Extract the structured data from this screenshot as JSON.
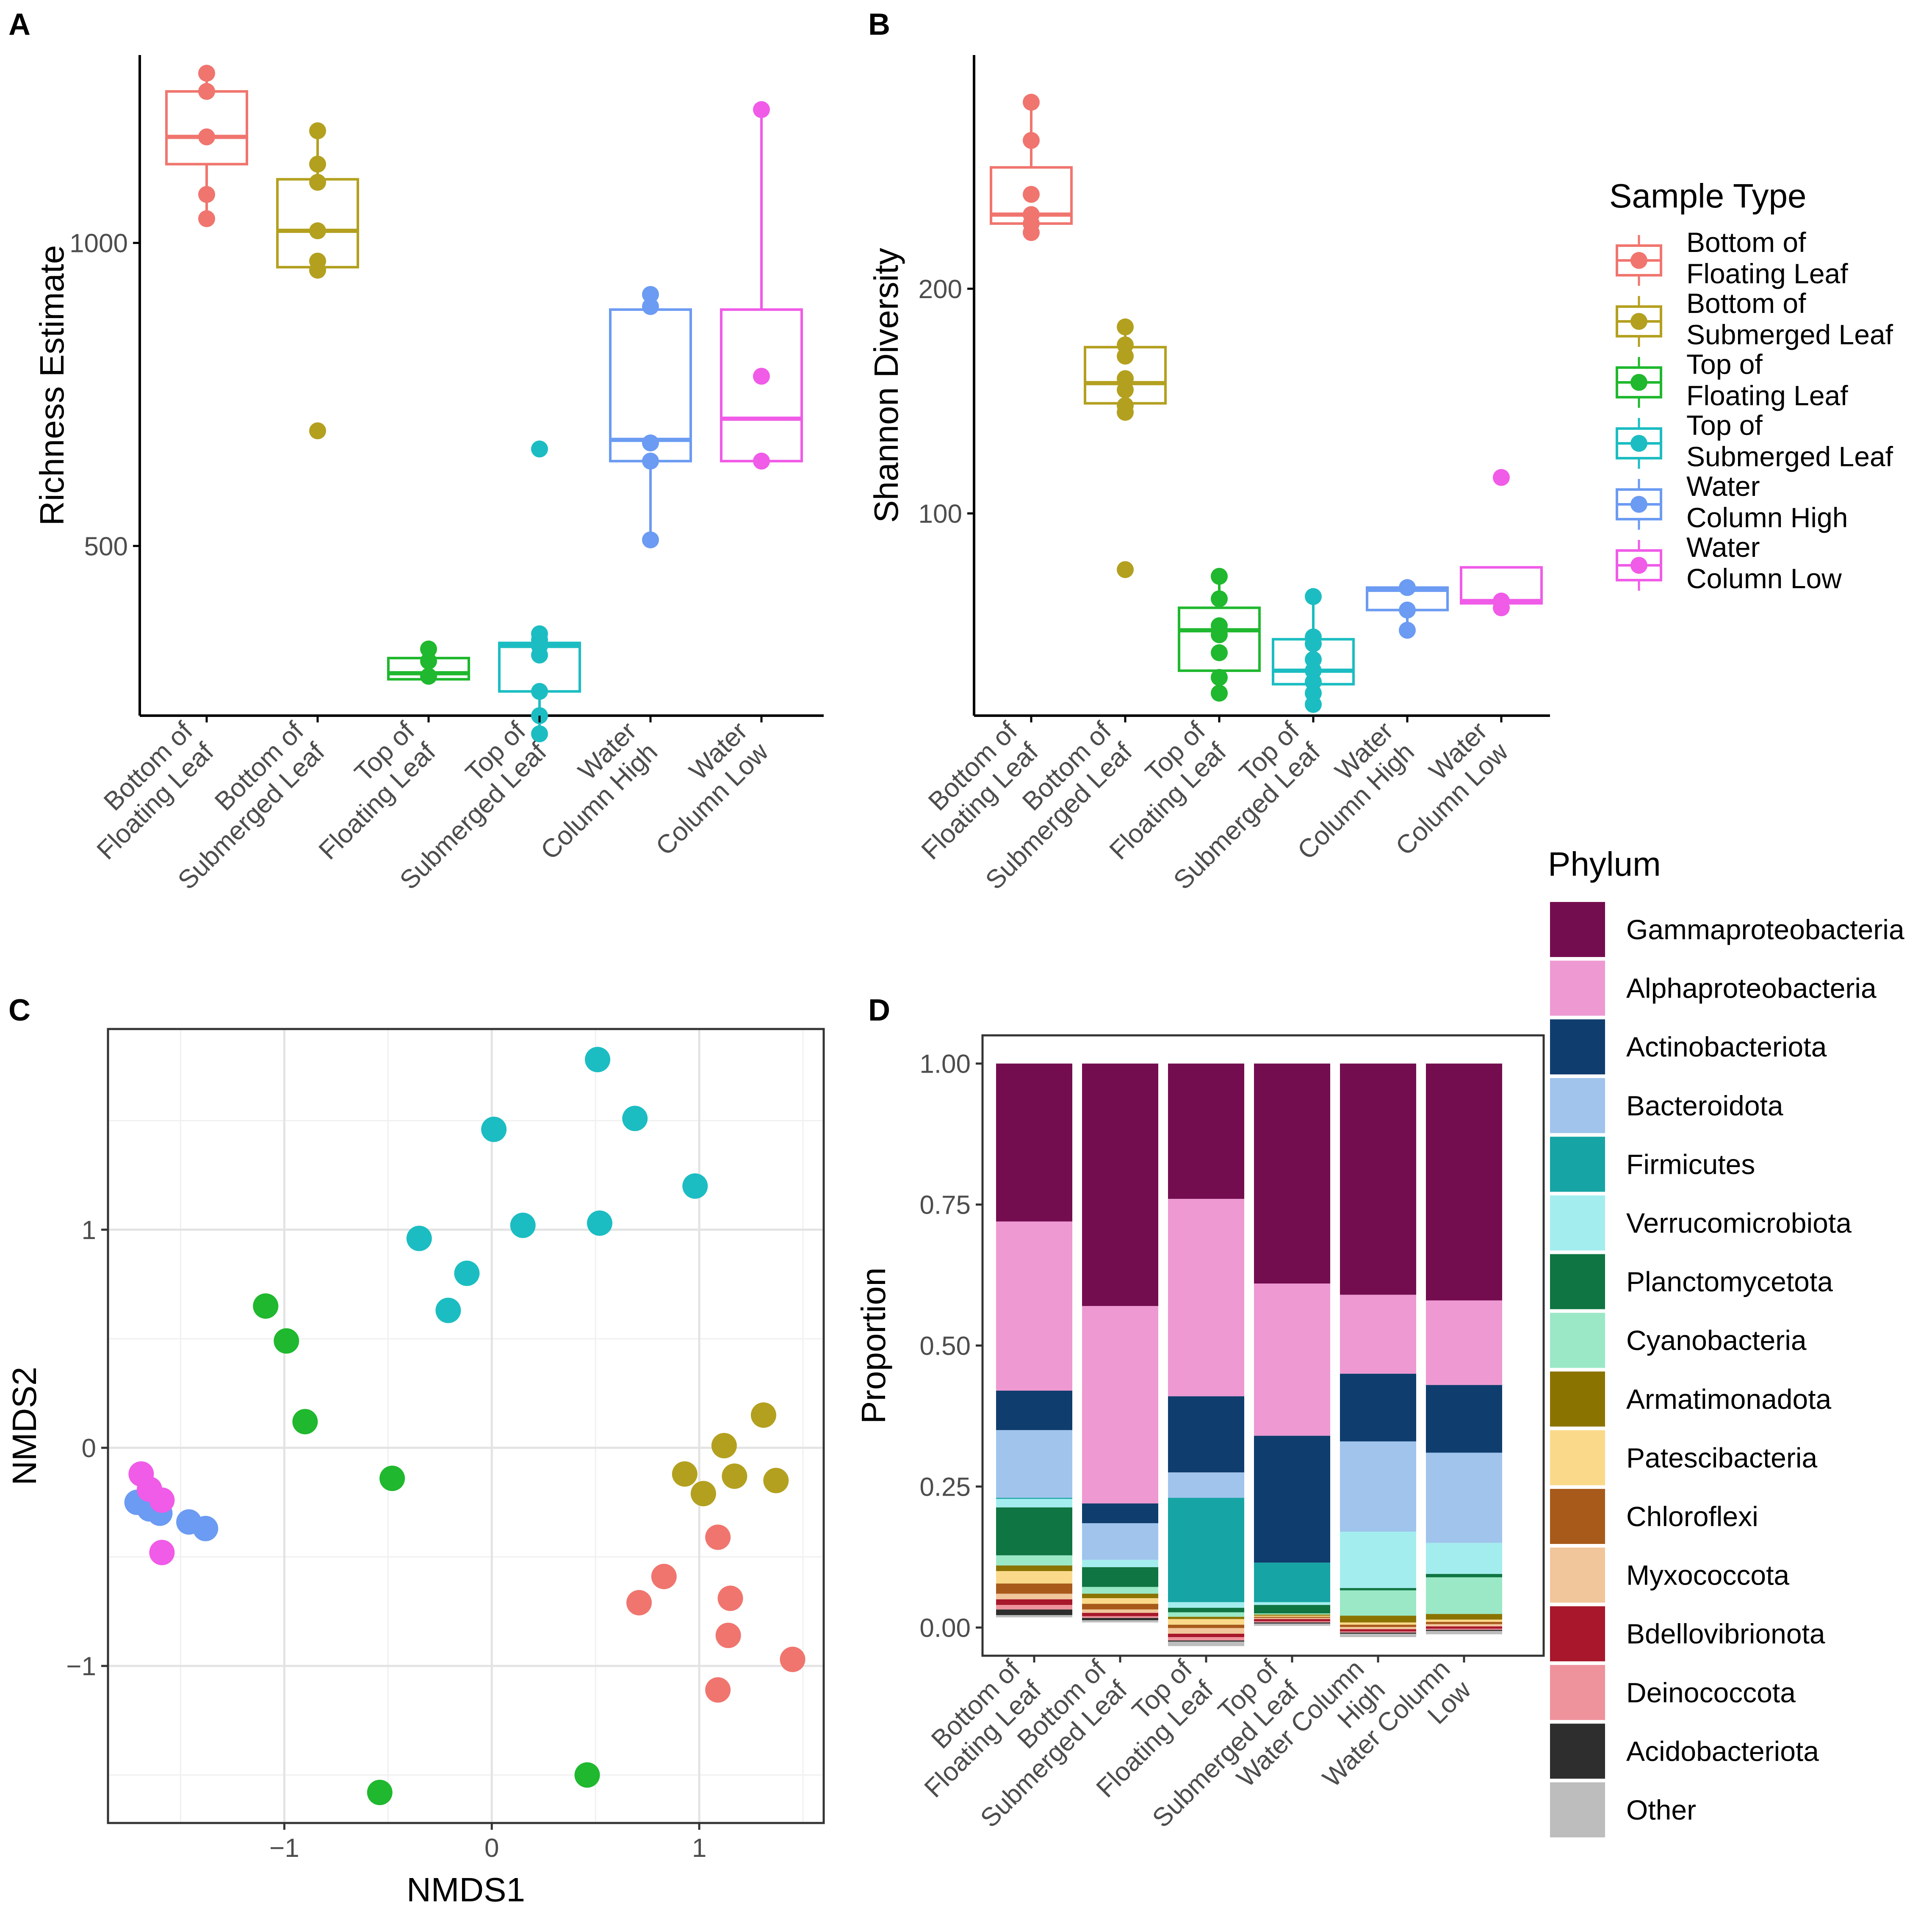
{
  "colors": {
    "Bottom of Floating Leaf": "#F0756E",
    "Bottom of Submerged Leaf": "#B3A01F",
    "Top of Floating Leaf": "#1FB82E",
    "Top of Submerged Leaf": "#1BBDC2",
    "Water Column High": "#6B9BF2",
    "Water Column Low": "#F05BE8"
  },
  "chart_data": [
    {
      "panel": "A",
      "type": "box",
      "ylabel": "Richness Estimate",
      "ylim": [
        220,
        1310
      ],
      "yticks": [
        500,
        1000
      ],
      "xtick_labels": [
        [
          "Bottom of",
          "Floating Leaf"
        ],
        [
          "Bottom of",
          "Submerged Leaf"
        ],
        [
          "Top of",
          "Floating Leaf"
        ],
        [
          "Top of",
          "Submerged Leaf"
        ],
        [
          "Water",
          "Column High"
        ],
        [
          "Water",
          "Column Low"
        ]
      ],
      "groups": [
        {
          "name": "Bottom of Floating Leaf",
          "q1": 1130,
          "median": 1175,
          "q3": 1250,
          "whisker_low": 1040,
          "whisker_high": 1280,
          "points": [
            1280,
            1250,
            1175,
            1080,
            1040
          ]
        },
        {
          "name": "Bottom of Submerged Leaf",
          "q1": 960,
          "median": 1020,
          "q3": 1105,
          "whisker_low": 950,
          "whisker_high": 1185,
          "points": [
            1185,
            1130,
            1100,
            1020,
            970,
            955,
            690
          ]
        },
        {
          "name": "Top of Floating Leaf",
          "q1": 280,
          "median": 290,
          "q3": 315,
          "whisker_low": 280,
          "whisker_high": 330,
          "points": [
            330,
            310,
            285
          ]
        },
        {
          "name": "Top of Submerged Leaf",
          "q1": 260,
          "median": 335,
          "q3": 340,
          "whisker_low": 190,
          "whisker_high": 355,
          "points": [
            660,
            355,
            345,
            335,
            320,
            260,
            220,
            190
          ]
        },
        {
          "name": "Water Column High",
          "q1": 640,
          "median": 675,
          "q3": 890,
          "whisker_low": 510,
          "whisker_high": 915,
          "points": [
            915,
            895,
            670,
            640,
            510
          ]
        },
        {
          "name": "Water Column Low",
          "q1": 640,
          "median": 710,
          "q3": 890,
          "whisker_low": 640,
          "whisker_high": 1220,
          "points": [
            1220,
            780,
            640
          ]
        }
      ]
    },
    {
      "panel": "B",
      "type": "box",
      "ylabel": "Shannon Diversity",
      "ylim": [
        10,
        304
      ],
      "yticks": [
        100,
        200
      ],
      "xtick_labels": [
        [
          "Bottom of",
          "Floating Leaf"
        ],
        [
          "Bottom of",
          "Submerged Leaf"
        ],
        [
          "Top of",
          "Floating Leaf"
        ],
        [
          "Top of",
          "Submerged Leaf"
        ],
        [
          "Water",
          "Column High"
        ],
        [
          "Water",
          "Column Low"
        ]
      ],
      "groups": [
        {
          "name": "Bottom of Floating Leaf",
          "q1": 229,
          "median": 233,
          "q3": 254,
          "whisker_low": 225,
          "whisker_high": 283,
          "points": [
            283,
            266,
            242,
            233,
            229,
            225
          ]
        },
        {
          "name": "Bottom of Submerged Leaf",
          "q1": 149,
          "median": 158,
          "q3": 174,
          "whisker_low": 145,
          "whisker_high": 183,
          "points": [
            183,
            175,
            170,
            160,
            155,
            148,
            145,
            75
          ]
        },
        {
          "name": "Top of Floating Leaf",
          "q1": 30,
          "median": 48,
          "q3": 58,
          "whisker_low": 20,
          "whisker_high": 72,
          "points": [
            72,
            62,
            50,
            46,
            38,
            27,
            20
          ]
        },
        {
          "name": "Top of Submerged Leaf",
          "q1": 24,
          "median": 30,
          "q3": 44,
          "whisker_low": 15,
          "whisker_high": 63,
          "points": [
            63,
            45,
            42,
            35,
            30,
            25,
            20,
            15
          ]
        },
        {
          "name": "Water Column High",
          "q1": 57,
          "median": 66,
          "q3": 67,
          "whisker_low": 48,
          "whisker_high": 67,
          "points": [
            67,
            57,
            48
          ]
        },
        {
          "name": "Water Column Low",
          "q1": 60,
          "median": 61,
          "q3": 76,
          "whisker_low": 58,
          "whisker_high": 76,
          "points": [
            116,
            61,
            58
          ]
        }
      ]
    },
    {
      "panel": "C",
      "type": "scatter",
      "xlabel": "NMDS1",
      "ylabel": "NMDS2",
      "xlim": [
        -1.85,
        1.6
      ],
      "ylim": [
        -1.72,
        1.92
      ],
      "xticks": [
        -1,
        0,
        1
      ],
      "yticks": [
        -1,
        0,
        1
      ],
      "series": [
        {
          "name": "Top of Submerged Leaf",
          "x": [
            0.51,
            0.69,
            0.01,
            0.98,
            0.15,
            0.52,
            -0.35,
            -0.12,
            -0.21
          ],
          "y": [
            1.78,
            1.51,
            1.46,
            1.2,
            1.02,
            1.03,
            0.96,
            0.8,
            0.63
          ]
        },
        {
          "name": "Top of Floating Leaf",
          "x": [
            -1.09,
            -0.99,
            -0.9,
            -0.48,
            0.46,
            -0.54
          ],
          "y": [
            0.65,
            0.49,
            0.12,
            -0.14,
            -1.5,
            -1.58
          ]
        },
        {
          "name": "Bottom of Submerged Leaf",
          "x": [
            1.31,
            1.12,
            0.93,
            1.17,
            1.37,
            1.02
          ],
          "y": [
            0.15,
            0.01,
            -0.12,
            -0.13,
            -0.15,
            -0.21
          ]
        },
        {
          "name": "Bottom of Floating Leaf",
          "x": [
            1.09,
            0.83,
            0.71,
            1.15,
            1.14,
            1.09,
            1.45
          ],
          "y": [
            -0.41,
            -0.59,
            -0.71,
            -0.69,
            -0.86,
            -1.11,
            -0.97
          ]
        },
        {
          "name": "Water Column High",
          "x": [
            -1.71,
            -1.65,
            -1.6,
            -1.46,
            -1.38
          ],
          "y": [
            -0.25,
            -0.28,
            -0.3,
            -0.34,
            -0.37
          ]
        },
        {
          "name": "Water Column Low",
          "x": [
            -1.69,
            -1.65,
            -1.59,
            -1.59
          ],
          "y": [
            -0.12,
            -0.19,
            -0.24,
            -0.48
          ]
        }
      ]
    },
    {
      "panel": "D",
      "type": "stacked_bar",
      "ylabel": "Proportion",
      "ylim": [
        -0.05,
        1.05
      ],
      "yticks": [
        0,
        0.25,
        0.5,
        0.75,
        1
      ],
      "ytick_labels": [
        "0.00",
        "0.25",
        "0.50",
        "0.75",
        "1.00"
      ],
      "legend_title": "Phylum",
      "categories": [
        [
          "Bottom of",
          "Floating Leaf"
        ],
        [
          "Bottom of",
          "Submerged Leaf"
        ],
        [
          "Top of",
          "Floating Leaf"
        ],
        [
          "Top of",
          "Submerged Leaf"
        ],
        [
          "Water Column",
          "High"
        ],
        [
          "Water Column",
          "Low"
        ]
      ],
      "series": [
        {
          "name": "Gammaproteobacteria",
          "color": "#740D4F",
          "values": [
            0.28,
            0.43,
            0.24,
            0.39,
            0.41,
            0.42
          ]
        },
        {
          "name": "Alphaproteobacteria",
          "color": "#EE99D2",
          "values": [
            0.3,
            0.35,
            0.35,
            0.27,
            0.14,
            0.15
          ]
        },
        {
          "name": "Actinobacteriota",
          "color": "#0F3D6E",
          "values": [
            0.07,
            0.035,
            0.135,
            0.225,
            0.12,
            0.12
          ]
        },
        {
          "name": "Bacteroidota",
          "color": "#A0C4EC",
          "values": [
            0.12,
            0.065,
            0.045,
            0.0,
            0.16,
            0.16
          ]
        },
        {
          "name": "Firmicutes",
          "color": "#17A4A4",
          "values": [
            0.002,
            0.0,
            0.185,
            0.07,
            0.0,
            0.0
          ]
        },
        {
          "name": "Verrucomicrobiota",
          "color": "#A4EDEF",
          "values": [
            0.015,
            0.013,
            0.01,
            0.005,
            0.1,
            0.055
          ]
        },
        {
          "name": "Planctomycetota",
          "color": "#0F7542",
          "values": [
            0.085,
            0.035,
            0.008,
            0.015,
            0.004,
            0.006
          ]
        },
        {
          "name": "Cyanobacteria",
          "color": "#9AE8C6",
          "values": [
            0.018,
            0.012,
            0.008,
            0.002,
            0.045,
            0.065
          ]
        },
        {
          "name": "Armatimonadota",
          "color": "#8B7300",
          "values": [
            0.01,
            0.008,
            0.004,
            0.002,
            0.012,
            0.01
          ]
        },
        {
          "name": "Patescibacteria",
          "color": "#FAD98A",
          "values": [
            0.022,
            0.01,
            0.01,
            0.002,
            0.004,
            0.004
          ]
        },
        {
          "name": "Chloroflexi",
          "color": "#A85A1A",
          "values": [
            0.018,
            0.01,
            0.006,
            0.002,
            0.004,
            0.004
          ]
        },
        {
          "name": "Myxococcota",
          "color": "#F1C69A",
          "values": [
            0.01,
            0.006,
            0.01,
            0.002,
            0.004,
            0.004
          ]
        },
        {
          "name": "Bdellovibrionota",
          "color": "#A8172B",
          "values": [
            0.01,
            0.006,
            0.006,
            0.004,
            0.004,
            0.004
          ]
        },
        {
          "name": "Deinococcota",
          "color": "#EE929C",
          "values": [
            0.008,
            0.003,
            0.006,
            0.002,
            0.002,
            0.002
          ]
        },
        {
          "name": "Acidobacteriota",
          "color": "#2E2E2E",
          "values": [
            0.01,
            0.004,
            0.002,
            0.002,
            0.002,
            0.002
          ]
        },
        {
          "name": "Other",
          "color": "#BDBDBD",
          "values": [
            0.004,
            0.004,
            0.008,
            0.004,
            0.006,
            0.006
          ]
        }
      ]
    }
  ],
  "panels": {
    "a": "A",
    "b": "B",
    "c": "C",
    "d": "D"
  },
  "legend_sample": {
    "title": "Sample Type",
    "items": [
      {
        "name": "Bottom of Floating Leaf",
        "lines": [
          "Bottom of",
          "Floating Leaf"
        ]
      },
      {
        "name": "Bottom of Submerged Leaf",
        "lines": [
          "Bottom of",
          "Submerged Leaf"
        ]
      },
      {
        "name": "Top of Floating Leaf",
        "lines": [
          "Top of",
          "Floating Leaf"
        ]
      },
      {
        "name": "Top of Submerged Leaf",
        "lines": [
          "Top of",
          "Submerged Leaf"
        ]
      },
      {
        "name": "Water Column High",
        "lines": [
          "Water",
          "Column High"
        ]
      },
      {
        "name": "Water Column Low",
        "lines": [
          "Water",
          "Column Low"
        ]
      }
    ]
  }
}
